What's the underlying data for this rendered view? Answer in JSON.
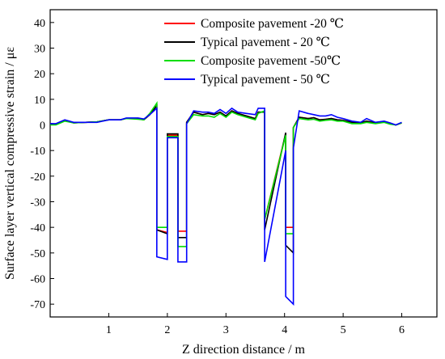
{
  "chart_data": {
    "type": "line",
    "title": "",
    "xlabel": "Z direction distance / m",
    "ylabel": "Surface layer vertical compressive strain / με",
    "xlim": [
      0,
      6.6
    ],
    "ylim": [
      -75,
      45
    ],
    "x_ticks": [
      1,
      2,
      3,
      4,
      5,
      6
    ],
    "y_ticks": [
      40,
      30,
      20,
      10,
      0,
      -10,
      -20,
      -30,
      -40,
      -50,
      -60,
      -70
    ],
    "grid": false,
    "legend_position": "top-right",
    "series": [
      {
        "name": "Composite pavement -20 ℃",
        "color": "#ff0000",
        "points": [
          [
            0,
            0.5
          ],
          [
            0.1,
            0.3
          ],
          [
            0.25,
            1.8
          ],
          [
            0.4,
            0.8
          ],
          [
            0.6,
            1
          ],
          [
            0.8,
            1.2
          ],
          [
            1,
            2
          ],
          [
            1.2,
            2
          ],
          [
            1.3,
            2.6
          ],
          [
            1.5,
            2.4
          ],
          [
            1.6,
            2
          ],
          [
            1.7,
            4
          ],
          [
            1.82,
            7.5
          ],
          [
            1.82,
            -41
          ],
          [
            2,
            -42
          ],
          [
            2,
            -4
          ],
          [
            2.18,
            -4
          ],
          [
            2.18,
            -41.5
          ],
          [
            2.33,
            -41.5
          ],
          [
            2.33,
            1
          ],
          [
            2.45,
            5
          ],
          [
            2.6,
            4
          ],
          [
            2.7,
            4.5
          ],
          [
            2.8,
            4
          ],
          [
            2.9,
            5
          ],
          [
            3,
            3.5
          ],
          [
            3.1,
            5.5
          ],
          [
            3.2,
            4.5
          ],
          [
            3.35,
            3.5
          ],
          [
            3.5,
            2.5
          ],
          [
            3.55,
            5
          ],
          [
            3.66,
            5
          ],
          [
            3.66,
            -37
          ],
          [
            4.02,
            -3.5
          ],
          [
            4.02,
            -40
          ],
          [
            4.15,
            -40
          ],
          [
            4.15,
            -1
          ],
          [
            4.25,
            3
          ],
          [
            4.4,
            2.5
          ],
          [
            4.5,
            2.8
          ],
          [
            4.6,
            2
          ],
          [
            4.7,
            2.2
          ],
          [
            4.8,
            2.5
          ],
          [
            4.9,
            2
          ],
          [
            5,
            1.8
          ],
          [
            5.15,
            1
          ],
          [
            5.3,
            0.8
          ],
          [
            5.4,
            1.5
          ],
          [
            5.55,
            0.8
          ],
          [
            5.7,
            1.2
          ],
          [
            5.8,
            0.5
          ],
          [
            5.9,
            0
          ],
          [
            6,
            0.8
          ]
        ]
      },
      {
        "name": "Typical pavement - 20 ℃",
        "color": "#000000",
        "points": [
          [
            0,
            0.5
          ],
          [
            0.1,
            0.3
          ],
          [
            0.25,
            1.8
          ],
          [
            0.4,
            0.8
          ],
          [
            0.6,
            1
          ],
          [
            0.8,
            1.2
          ],
          [
            1,
            2
          ],
          [
            1.2,
            2
          ],
          [
            1.3,
            2.6
          ],
          [
            1.5,
            2.4
          ],
          [
            1.6,
            2
          ],
          [
            1.7,
            4
          ],
          [
            1.82,
            7.5
          ],
          [
            1.82,
            -41
          ],
          [
            2,
            -42.5
          ],
          [
            2,
            -3.5
          ],
          [
            2.18,
            -3.5
          ],
          [
            2.18,
            -44
          ],
          [
            2.33,
            -44
          ],
          [
            2.33,
            1
          ],
          [
            2.45,
            5
          ],
          [
            2.6,
            4
          ],
          [
            2.7,
            4.5
          ],
          [
            2.8,
            4
          ],
          [
            2.9,
            5
          ],
          [
            3,
            3.5
          ],
          [
            3.1,
            5.5
          ],
          [
            3.2,
            4.5
          ],
          [
            3.35,
            3.5
          ],
          [
            3.5,
            2.5
          ],
          [
            3.55,
            5
          ],
          [
            3.66,
            5
          ],
          [
            3.66,
            -41
          ],
          [
            4.02,
            -3
          ],
          [
            4.02,
            -47
          ],
          [
            4.15,
            -50
          ],
          [
            4.15,
            -1
          ],
          [
            4.25,
            3
          ],
          [
            4.4,
            2.5
          ],
          [
            4.5,
            2.8
          ],
          [
            4.6,
            2
          ],
          [
            4.7,
            2.2
          ],
          [
            4.8,
            2.5
          ],
          [
            4.9,
            2
          ],
          [
            5,
            1.8
          ],
          [
            5.15,
            1
          ],
          [
            5.3,
            0.8
          ],
          [
            5.4,
            1.5
          ],
          [
            5.55,
            0.8
          ],
          [
            5.7,
            1.2
          ],
          [
            5.8,
            0.5
          ],
          [
            5.9,
            0
          ],
          [
            6,
            0.8
          ]
        ]
      },
      {
        "name": "Composite pavement -50℃",
        "color": "#00dd00",
        "points": [
          [
            0,
            0
          ],
          [
            0.1,
            0
          ],
          [
            0.25,
            1.5
          ],
          [
            0.4,
            0.8
          ],
          [
            0.6,
            1
          ],
          [
            0.8,
            1.2
          ],
          [
            1,
            2
          ],
          [
            1.2,
            2
          ],
          [
            1.3,
            2.5
          ],
          [
            1.5,
            2.2
          ],
          [
            1.6,
            2
          ],
          [
            1.7,
            4.5
          ],
          [
            1.82,
            8.5
          ],
          [
            1.82,
            -40
          ],
          [
            2,
            -40
          ],
          [
            2,
            -4.5
          ],
          [
            2.18,
            -4.5
          ],
          [
            2.18,
            -47.5
          ],
          [
            2.33,
            -47.5
          ],
          [
            2.33,
            0.5
          ],
          [
            2.45,
            4
          ],
          [
            2.6,
            3.5
          ],
          [
            2.7,
            3.5
          ],
          [
            2.8,
            3
          ],
          [
            2.9,
            4.5
          ],
          [
            3,
            3
          ],
          [
            3.1,
            5
          ],
          [
            3.2,
            4
          ],
          [
            3.35,
            3
          ],
          [
            3.5,
            2
          ],
          [
            3.55,
            4.5
          ],
          [
            3.66,
            5.5
          ],
          [
            3.66,
            -37
          ],
          [
            4.02,
            -4
          ],
          [
            4.02,
            -42.5
          ],
          [
            4.15,
            -42.5
          ],
          [
            4.15,
            -1
          ],
          [
            4.25,
            2.5
          ],
          [
            4.4,
            2
          ],
          [
            4.5,
            2.2
          ],
          [
            4.6,
            1.5
          ],
          [
            4.7,
            1.8
          ],
          [
            4.8,
            2
          ],
          [
            4.9,
            1.5
          ],
          [
            5,
            1.5
          ],
          [
            5.15,
            0.5
          ],
          [
            5.3,
            0.5
          ],
          [
            5.4,
            1
          ],
          [
            5.55,
            0.5
          ],
          [
            5.7,
            1
          ],
          [
            5.8,
            0.3
          ],
          [
            5.9,
            0
          ],
          [
            6,
            0.8
          ]
        ]
      },
      {
        "name": "Typical pavement - 50 ℃",
        "color": "#0000ff",
        "points": [
          [
            0,
            0.5
          ],
          [
            0.1,
            0.5
          ],
          [
            0.25,
            2
          ],
          [
            0.4,
            1
          ],
          [
            0.6,
            1
          ],
          [
            0.8,
            1
          ],
          [
            1,
            2
          ],
          [
            1.2,
            2
          ],
          [
            1.3,
            2.7
          ],
          [
            1.5,
            2.7
          ],
          [
            1.6,
            2.3
          ],
          [
            1.7,
            4
          ],
          [
            1.82,
            6.5
          ],
          [
            1.82,
            -51.5
          ],
          [
            2,
            -52.5
          ],
          [
            2,
            -5
          ],
          [
            2.18,
            -5
          ],
          [
            2.18,
            -53.5
          ],
          [
            2.33,
            -53.5
          ],
          [
            2.33,
            0.5
          ],
          [
            2.45,
            5.5
          ],
          [
            2.6,
            5
          ],
          [
            2.7,
            5
          ],
          [
            2.8,
            4.5
          ],
          [
            2.9,
            6
          ],
          [
            3,
            4.5
          ],
          [
            3.1,
            6.5
          ],
          [
            3.2,
            5
          ],
          [
            3.35,
            4.5
          ],
          [
            3.5,
            4
          ],
          [
            3.55,
            6.5
          ],
          [
            3.66,
            6.5
          ],
          [
            3.66,
            -53.5
          ],
          [
            4.02,
            -10
          ],
          [
            4.02,
            -67
          ],
          [
            4.15,
            -70
          ],
          [
            4.15,
            -9
          ],
          [
            4.25,
            5.5
          ],
          [
            4.4,
            4.5
          ],
          [
            4.5,
            4
          ],
          [
            4.6,
            3.5
          ],
          [
            4.7,
            3.5
          ],
          [
            4.8,
            4
          ],
          [
            4.9,
            3
          ],
          [
            5,
            2.5
          ],
          [
            5.15,
            1.5
          ],
          [
            5.3,
            1
          ],
          [
            5.4,
            2.5
          ],
          [
            5.55,
            1
          ],
          [
            5.7,
            1.5
          ],
          [
            5.8,
            0.8
          ],
          [
            5.9,
            0
          ],
          [
            6,
            1
          ]
        ]
      }
    ]
  }
}
